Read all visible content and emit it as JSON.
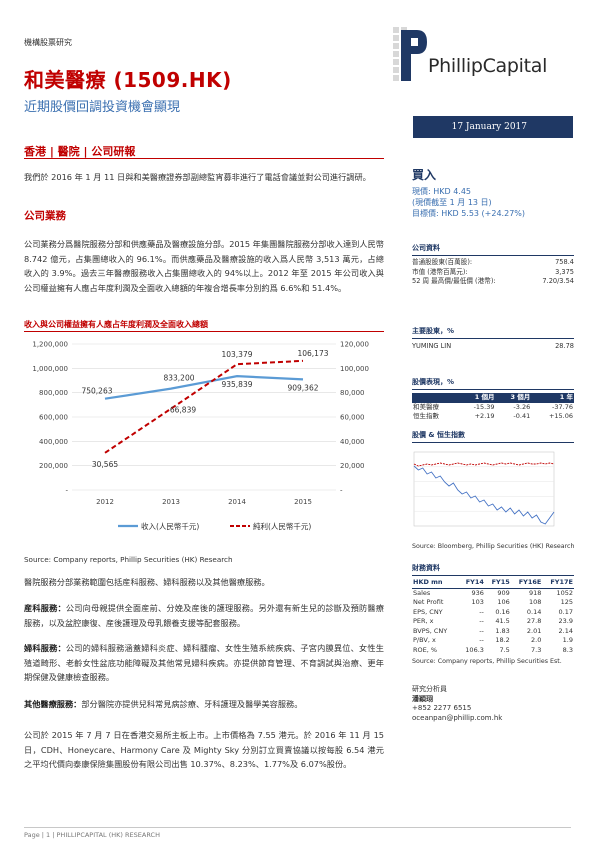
{
  "header": {
    "doc_type": "機構股票研究",
    "company_title": "和美醫療 (1509.HK)",
    "subtitle": "近期股價回調投資機會顯現",
    "brand": "PhillipCapital",
    "date": "17 January 2017",
    "tags": "香港 | 醫院 | 公司研報"
  },
  "body": {
    "intro": "我們於 2016 年 1 月 11 日與和美醫療證券部副總監宵募非進行了電話會議並對公司進行調研。",
    "business_heading": "公司業務",
    "business_para": "公司業務分爲醫院服務分部和供應藥品及醫療設施分部。2015 年集團醫院服務分部收入達到人民幣 8.742 億元，占集團總收入的 96.1%。而供應藥品及醫療設施的收入爲人民幣 3,513 萬元，占總收入的 3.9%。過去三年醫療服務收入占集團總收入的 94%以上。2012 年至 2015 年公司收入與公司權益擁有人應占年度利潤及全面收入總額的年複合增長率分別約爲 6.6%和 51.4%。",
    "chart_title": "收入與公司權益擁有人應占年度利潤及全面收入總額",
    "chart_source": "Source: Company reports, Phillip Securities (HK) Research",
    "p1": "醫院服務分部業務範圍包括産科服務、婦科服務以及其他醫療服務。",
    "p2_label": "産科服務：",
    "p2": "公司向母親提供全面産前、分娩及産後的護理服務。另外還有新生兒的診斷及預防醫療服務，以及盆腔康復、産後護理及母乳餵養支援等配套服務。",
    "p3_label": "婦科服務：",
    "p3": "公司的婦科服務涵蓋婦科炎症、婦科腫瘤、女性生殖系統疾病、子宮内膜異位、女性生殖道畸形、老齡女性盆底功能障礙及其他常見婦科疾病。亦提供節育管理、不育調試與治療、更年期保健及健康檢查服務。",
    "p4_label": "其他醫療服務：",
    "p4": "部分醫院亦提供兒科常見病診療、牙科護理及醫學美容服務。",
    "p5": "公司於 2015 年 7 月 7 日在香港交易所主板上市。上市價格為 7.55 港元。於 2016 年 11 月 15 日，CDH、Honeycare、Harmony Care 及 Mighty Sky 分別訂立買賣協議以按每股 6.54 港元之平均代價向泰康保險集團股份有限公司出售 10.37%、8.23%、1.77%及 6.07%股份。"
  },
  "rating": {
    "label": "買入",
    "price": "現價: HKD 4.45",
    "as_of": "(現價截至 1 月 13 日)",
    "target": "目標價: HKD 5.53 (+24.27%)"
  },
  "company_data": {
    "heading": "公司資料",
    "rows": [
      {
        "k": "普通股股東(百萬股):",
        "v": "758.4"
      },
      {
        "k": "市值 (港幣百萬元):",
        "v": "3,375"
      },
      {
        "k": "52 周 最高價/最低價 (港幣):",
        "v": "7.20/3.54"
      }
    ]
  },
  "shareholder": {
    "heading": "主要股東，%",
    "name": "YUMING LIN",
    "value": "28.78"
  },
  "performance": {
    "heading": "股價表現，%",
    "cols": [
      "",
      "1 個月",
      "3 個月",
      "1 年"
    ],
    "rows": [
      [
        "和美醫療",
        "-15.39",
        "-3.26",
        "-37.76"
      ],
      [
        "恒生指數",
        "+2.19",
        "-0.41",
        "+15.06"
      ]
    ]
  },
  "mini_chart": {
    "heading": "股價 & 恒生指數",
    "source": "Source: Bloomberg, Phillip Securities (HK) Research"
  },
  "financials": {
    "heading": "財務資料",
    "cols": [
      "HKD mn",
      "FY14",
      "FY15",
      "FY16E",
      "FY17E"
    ],
    "rows": [
      [
        "Sales",
        "936",
        "909",
        "918",
        "1052"
      ],
      [
        "Net Profit",
        "103",
        "106",
        "108",
        "125"
      ],
      [
        "EPS, CNY",
        "--",
        "0.16",
        "0.14",
        "0.17"
      ],
      [
        "PER, x",
        "--",
        "41.5",
        "27.8",
        "23.9"
      ],
      [
        "BVPS, CNY",
        "--",
        "1.83",
        "2.01",
        "2.14"
      ],
      [
        "P/BV, x",
        "--",
        "18.2",
        "2.0",
        "1.9"
      ],
      [
        "ROE, %",
        "106.3",
        "7.5",
        "7.3",
        "8.3"
      ]
    ],
    "source": "Source: Company reports, Phillip Securities Est."
  },
  "analyst": {
    "label": "研究分析員",
    "name": "潘穎珝",
    "phone": "+852 2277 6515",
    "email": "oceanpan@phillip.com.hk"
  },
  "footer": "Page | 1 | PHILLIPCAPITAL (HK) RESEARCH",
  "chart_data": {
    "type": "line",
    "categories": [
      "2012",
      "2013",
      "2014",
      "2015"
    ],
    "series": [
      {
        "name": "收入(人民幣千元)",
        "values": [
          750263,
          833200,
          935839,
          909362
        ],
        "axis": "left",
        "color": "#5b9bd5"
      },
      {
        "name": "純利(人民幣千元)",
        "values": [
          30565,
          66839,
          103379,
          106173
        ],
        "axis": "right",
        "color": "#c00000"
      }
    ],
    "data_labels": {
      "left": [
        "750,263",
        "833,200",
        "935,839",
        "909,362"
      ],
      "right": [
        "30,565",
        "66,839",
        "103,379",
        "106,173"
      ]
    },
    "y_left_ticks": [
      "1,200,000",
      "1,000,000",
      "800,000",
      "600,000",
      "400,000",
      "200,000",
      "-"
    ],
    "y_right_ticks": [
      "120,000",
      "100,000",
      "80,000",
      "60,000",
      "40,000",
      "20,000",
      "-"
    ],
    "ylim_left": [
      0,
      1200000
    ],
    "ylim_right": [
      0,
      120000
    ],
    "grid": true,
    "legend": "bottom"
  }
}
